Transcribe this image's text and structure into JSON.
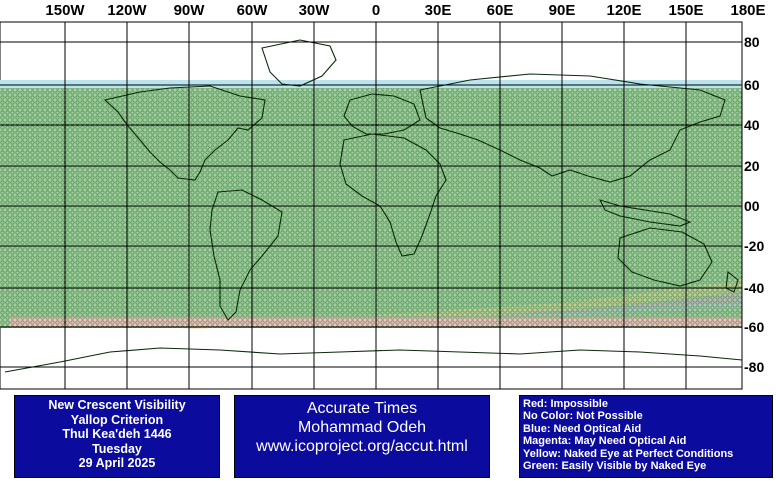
{
  "map": {
    "longitude_labels": [
      "150W",
      "120W",
      "90W",
      "60W",
      "30W",
      "0",
      "30E",
      "60E",
      "90E",
      "120E",
      "150E",
      "180E"
    ],
    "latitude_labels": [
      "80",
      "60",
      "40",
      "20",
      "00",
      "-20",
      "-40",
      "-60",
      "-80"
    ]
  },
  "visibility_zones": [
    {
      "label": "Red",
      "color": "#cc3333"
    },
    {
      "label": "Blue",
      "color": "#3344cc"
    },
    {
      "label": "Magenta",
      "color": "#dd44dd"
    },
    {
      "label": "Yellow",
      "color": "#f0b040"
    },
    {
      "label": "Green",
      "color": "#2e8b2e"
    },
    {
      "label": "Cyan",
      "color": "#66ccdd"
    }
  ],
  "info_panel": {
    "lines": [
      "New Crescent Visibility",
      "Yallop Criterion",
      "Thul Kea'deh 1446",
      "Tuesday",
      "29 April 2025"
    ]
  },
  "credit_panel": {
    "lines": [
      "Accurate Times",
      "Mohammad Odeh",
      "www.icoproject.org/accut.html"
    ]
  },
  "legend": {
    "lines": [
      "Red: Impossible",
      "No Color: Not Possible",
      "Blue: Need Optical Aid",
      "Magenta: May Need Optical Aid",
      "Yellow: Naked Eye at Perfect Conditions",
      "Green: Easily Visible by Naked Eye"
    ]
  }
}
